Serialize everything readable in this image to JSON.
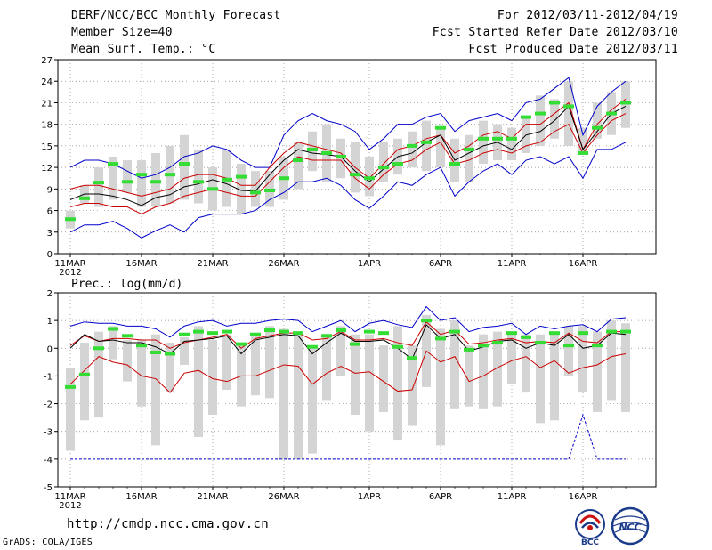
{
  "header": {
    "title": "DERF/NCC/BCC Monthly Forecast",
    "member_size": "Member Size=40",
    "variable": "Mean Surf. Temp.: °C",
    "for_range": "For 2012/03/11-2012/04/19",
    "fcst_started": "Fcst Started Refer Date 2012/03/10",
    "fcst_produced": "Fcst Produced Date 2012/03/11"
  },
  "footer": {
    "url": "http://cmdp.ncc.cma.gov.cn",
    "credit": "GrADS: COLA/IGES",
    "logo1_text": "BCC",
    "logo2_text": "NCC"
  },
  "colors": {
    "spread": "#d4d4d4",
    "median": "#33dd33",
    "mean": "#000000",
    "inner": "#cc0000",
    "outer": "#0000cc",
    "grid": "#888888"
  },
  "chart_data": [
    {
      "type": "line",
      "title": "Mean Surf. Temp.: °C",
      "xlabel": "",
      "ylabel": "",
      "ylim": [
        0,
        27
      ],
      "yticks": [
        0,
        3,
        6,
        9,
        12,
        15,
        18,
        21,
        24,
        27
      ],
      "xticks": [
        {
          "day": 1,
          "label": "11MAR"
        },
        {
          "day": 6,
          "label": "16MAR"
        },
        {
          "day": 11,
          "label": "21MAR"
        },
        {
          "day": 16,
          "label": "26MAR"
        },
        {
          "day": 22,
          "label": "1APR"
        },
        {
          "day": 27,
          "label": "6APR"
        },
        {
          "day": 32,
          "label": "11APR"
        },
        {
          "day": 37,
          "label": "16APR"
        }
      ],
      "year_label": "2012",
      "days": [
        1,
        2,
        3,
        4,
        5,
        6,
        7,
        8,
        9,
        10,
        11,
        12,
        13,
        14,
        15,
        16,
        17,
        18,
        19,
        20,
        21,
        22,
        23,
        24,
        25,
        26,
        27,
        28,
        29,
        30,
        31,
        32,
        33,
        34,
        35,
        36,
        37,
        38,
        39,
        40
      ],
      "series": [
        {
          "name": "upper bound",
          "values": [
            12,
            13,
            13,
            12.5,
            11.5,
            10.5,
            11,
            12,
            13.5,
            14,
            15,
            14.5,
            13,
            12,
            12,
            16.5,
            18.5,
            19.5,
            18.5,
            18,
            17,
            14.5,
            16,
            18,
            18,
            19,
            19.5,
            17,
            18.5,
            19,
            19.5,
            18.5,
            21,
            21.5,
            23,
            24.5,
            16.5,
            20.5,
            22.5,
            24
          ]
        },
        {
          "name": "upper spread",
          "values": [
            9,
            9.5,
            9.5,
            9,
            8.5,
            8,
            8.5,
            9,
            10.5,
            11,
            11,
            10.5,
            9.5,
            9.5,
            12,
            14,
            15.5,
            15,
            14.5,
            14,
            12,
            10.5,
            12.5,
            14.5,
            15,
            16,
            16.5,
            14,
            15,
            16.5,
            17,
            16,
            18,
            18,
            19.5,
            21,
            14.5,
            18,
            20,
            21.5
          ]
        },
        {
          "name": "ensemble mean",
          "values": [
            7.5,
            8.3,
            8.3,
            8,
            7.5,
            6.7,
            7.8,
            8.2,
            9.3,
            9.7,
            10.3,
            9.7,
            8.8,
            8.7,
            11,
            13,
            14.5,
            14,
            13.8,
            13.5,
            11.5,
            10,
            11.8,
            13.5,
            14,
            15.5,
            16.5,
            13,
            14,
            15,
            15.5,
            14.5,
            16.5,
            17,
            18.5,
            20.5,
            14.5,
            17,
            19.5,
            20.5
          ]
        },
        {
          "name": "lower spread",
          "values": [
            6.5,
            7,
            7,
            6.5,
            6.5,
            5.5,
            6.5,
            7,
            8,
            8.5,
            9,
            8.5,
            8,
            8,
            10,
            12,
            13.5,
            13,
            13,
            13,
            10.5,
            9,
            11,
            12.5,
            13,
            14.5,
            15.5,
            12.5,
            13,
            14,
            14.5,
            14,
            15,
            15.5,
            17,
            18,
            14,
            16.5,
            18.5,
            19.5
          ]
        },
        {
          "name": "lower bound",
          "values": [
            3,
            4,
            4,
            4.5,
            3.5,
            2.2,
            3.2,
            4,
            3,
            5,
            5.5,
            5.5,
            5.5,
            6,
            7.5,
            8.5,
            10,
            10,
            10.5,
            9.5,
            7.5,
            6.3,
            8,
            10,
            9.5,
            11,
            12,
            8,
            10,
            11.5,
            12.5,
            11,
            13,
            13.5,
            12.5,
            13.5,
            10.5,
            14.5,
            14.5,
            15.5
          ]
        }
      ],
      "boxes": [
        [
          3.5,
          6
        ],
        [
          7,
          9.5
        ],
        [
          6.5,
          12
        ],
        [
          7.5,
          13.5
        ],
        [
          8.5,
          13
        ],
        [
          6.5,
          13
        ],
        [
          6.5,
          14
        ],
        [
          7,
          15
        ],
        [
          7.5,
          16.5
        ],
        [
          7,
          14.5
        ],
        [
          6,
          12
        ],
        [
          6.5,
          14.5
        ],
        [
          5.5,
          12.5
        ],
        [
          6.5,
          11.5
        ],
        [
          6.5,
          11.5
        ],
        [
          7.5,
          13.5
        ],
        [
          9,
          15.5
        ],
        [
          11.5,
          17
        ],
        [
          10,
          18
        ],
        [
          10.5,
          16
        ],
        [
          8.5,
          15.5
        ],
        [
          8,
          13.5
        ],
        [
          10,
          15.5
        ],
        [
          11,
          16
        ],
        [
          12,
          17
        ],
        [
          11.5,
          18.5
        ],
        [
          12,
          17.5
        ],
        [
          10,
          16
        ],
        [
          10,
          16.5
        ],
        [
          12.5,
          18.5
        ],
        [
          13,
          18
        ],
        [
          13,
          17.5
        ],
        [
          14,
          19
        ],
        [
          15,
          22
        ],
        [
          16,
          21.5
        ],
        [
          15,
          24
        ],
        [
          14,
          17.5
        ],
        [
          16,
          21
        ],
        [
          16.5,
          22.5
        ],
        [
          17.5,
          24
        ]
      ],
      "medians": [
        4.8,
        7.7,
        9.9,
        12.5,
        10,
        11,
        10,
        11,
        12.5,
        10,
        9,
        10.3,
        10.7,
        8.5,
        8.8,
        10.5,
        13,
        14.5,
        14,
        13.5,
        11,
        10.5,
        12,
        12.5,
        15,
        15.5,
        17.5,
        12.5,
        14.5,
        16,
        16,
        16,
        19,
        19.5,
        21,
        20.5,
        14,
        17.5,
        19.5,
        21
      ]
    },
    {
      "type": "line",
      "title": "Prec.: log(mm/d)",
      "xlabel": "",
      "ylabel": "",
      "ylim": [
        -5,
        2
      ],
      "yticks": [
        -5,
        -4,
        -3,
        -2,
        -1,
        0,
        1,
        2
      ],
      "xticks": [
        {
          "day": 1,
          "label": "11MAR"
        },
        {
          "day": 6,
          "label": "16MAR"
        },
        {
          "day": 11,
          "label": "21MAR"
        },
        {
          "day": 16,
          "label": "26MAR"
        },
        {
          "day": 22,
          "label": "1APR"
        },
        {
          "day": 27,
          "label": "6APR"
        },
        {
          "day": 32,
          "label": "11APR"
        },
        {
          "day": 37,
          "label": "16APR"
        }
      ],
      "year_label": "2012",
      "days": [
        1,
        2,
        3,
        4,
        5,
        6,
        7,
        8,
        9,
        10,
        11,
        12,
        13,
        14,
        15,
        16,
        17,
        18,
        19,
        20,
        21,
        22,
        23,
        24,
        25,
        26,
        27,
        28,
        29,
        30,
        31,
        32,
        33,
        34,
        35,
        36,
        37,
        38,
        39,
        40
      ],
      "series": [
        {
          "name": "upper bound",
          "values": [
            0.8,
            0.95,
            0.9,
            0.9,
            0.8,
            0.8,
            0.7,
            0.4,
            0.8,
            0.95,
            1.0,
            0.8,
            0.9,
            0.9,
            1.0,
            1.05,
            1.0,
            0.6,
            0.8,
            1.0,
            0.6,
            0.9,
            1.0,
            0.85,
            0.75,
            1.5,
            1.0,
            1.1,
            0.6,
            0.75,
            0.8,
            0.9,
            0.5,
            0.8,
            0.7,
            0.8,
            0.85,
            0.6,
            1.05,
            1.1
          ]
        },
        {
          "name": "upper spread",
          "values": [
            0.1,
            0.45,
            0.25,
            0.35,
            0.35,
            0.3,
            0.3,
            0.0,
            0.2,
            0.3,
            0.4,
            0.5,
            0.0,
            0.35,
            0.45,
            0.55,
            0.55,
            0.3,
            0.35,
            0.6,
            0.3,
            0.3,
            0.35,
            0.2,
            0.1,
            0.95,
            0.5,
            0.65,
            0.15,
            0.2,
            0.3,
            0.35,
            0.2,
            0.25,
            0.2,
            0.55,
            0.25,
            0.2,
            0.6,
            0.6
          ]
        },
        {
          "name": "ensemble mean",
          "values": [
            0.0,
            0.5,
            0.25,
            0.3,
            0.2,
            0.2,
            0.05,
            -0.2,
            0.25,
            0.3,
            0.35,
            0.45,
            -0.2,
            0.3,
            0.4,
            0.5,
            0.45,
            -0.2,
            0.2,
            0.55,
            0.25,
            0.25,
            0.3,
            0.0,
            -0.4,
            0.85,
            0.35,
            0.5,
            -0.1,
            0.05,
            0.25,
            0.3,
            0.0,
            0.2,
            0.1,
            0.5,
            0.0,
            0.1,
            0.55,
            0.5
          ]
        },
        {
          "name": "lower spread",
          "values": [
            -1.3,
            -0.8,
            -0.3,
            -0.5,
            -0.6,
            -1.0,
            -1.1,
            -1.6,
            -0.9,
            -0.8,
            -1.1,
            -1.2,
            -1.0,
            -1.0,
            -0.8,
            -0.6,
            -0.65,
            -1.3,
            -0.9,
            -0.65,
            -0.9,
            -0.85,
            -1.2,
            -1.55,
            -1.5,
            -0.1,
            -0.5,
            -0.3,
            -1.2,
            -1.0,
            -0.7,
            -0.45,
            -0.3,
            -0.7,
            -0.45,
            -0.9,
            -0.7,
            -0.6,
            -0.3,
            -0.2
          ]
        },
        {
          "name": "lower bound",
          "values": [
            -4,
            -4,
            -4,
            -4,
            -4,
            -4,
            -4,
            -4,
            -4,
            -4,
            -4,
            -4,
            -4,
            -4,
            -4,
            -4,
            -4,
            -4,
            -4,
            -4,
            -4,
            -4,
            -4,
            -4,
            -4,
            -4,
            -4,
            -4,
            -4,
            -4,
            -4,
            -4,
            -4,
            -4,
            -4,
            -4,
            -2.4,
            -4,
            -4,
            -4
          ]
        }
      ],
      "boxes": [
        [
          -3.7,
          -0.7
        ],
        [
          -2.6,
          0.2
        ],
        [
          -2.5,
          0.6
        ],
        [
          -0.4,
          0.8
        ],
        [
          -1.2,
          0.3
        ],
        [
          -2.1,
          0.3
        ],
        [
          -3.5,
          0.5
        ],
        [
          -1.6,
          0.2
        ],
        [
          -0.6,
          0.4
        ],
        [
          -3.2,
          0.8
        ],
        [
          -2.4,
          0.3
        ],
        [
          -1.5,
          0.5
        ],
        [
          -2.1,
          0.1
        ],
        [
          -1.7,
          0.5
        ],
        [
          -1.8,
          0.8
        ],
        [
          -4.0,
          0.7
        ],
        [
          -4.0,
          0.5
        ],
        [
          -3.8,
          0.1
        ],
        [
          -1.9,
          0.5
        ],
        [
          -1.0,
          0.8
        ],
        [
          -2.4,
          0.5
        ],
        [
          -3.0,
          0.5
        ],
        [
          -2.3,
          0.1
        ],
        [
          -3.3,
          0.8
        ],
        [
          -2.8,
          0.1
        ],
        [
          -1.4,
          1.2
        ],
        [
          -3.5,
          0.7
        ],
        [
          -2.2,
          1.0
        ],
        [
          -2.1,
          0.1
        ],
        [
          -2.2,
          0.5
        ],
        [
          -2.1,
          0.6
        ],
        [
          -1.3,
          0.6
        ],
        [
          -1.6,
          0.5
        ],
        [
          -2.7,
          0.5
        ],
        [
          -2.6,
          0.5
        ],
        [
          -1.0,
          0.8
        ],
        [
          -1.6,
          0.8
        ],
        [
          -2.3,
          0.6
        ],
        [
          -1.9,
          1.0
        ],
        [
          -2.3,
          0.9
        ]
      ],
      "medians": [
        -1.4,
        -0.95,
        0.0,
        0.7,
        0.45,
        0.1,
        -0.15,
        -0.2,
        0.5,
        0.6,
        0.55,
        0.6,
        0.15,
        0.5,
        0.65,
        0.6,
        0.55,
        0.05,
        0.45,
        0.65,
        0.15,
        0.6,
        0.55,
        0.05,
        -0.35,
        1.0,
        0.35,
        0.6,
        -0.05,
        0.1,
        0.2,
        0.55,
        0.4,
        0.2,
        0.55,
        0.1,
        0.55,
        0.1,
        0.6,
        0.6
      ]
    }
  ]
}
